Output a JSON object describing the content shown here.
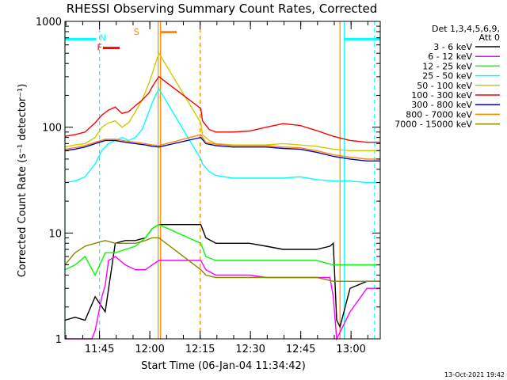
{
  "chart_data": {
    "type": "line",
    "title": "RHESSI Observing Summary Count Rates, Corrected",
    "xlabel": "Start Time (06-Jan-04 11:34:42)",
    "ylabel": "Corrected Count Rate (s⁻¹ detector⁻¹)",
    "x_unit": "minutes after 11:34:42",
    "x_range": [
      0,
      94
    ],
    "ylim": [
      1,
      1000
    ],
    "yscale": "log",
    "grid": false,
    "legend_position": "top-right-outside",
    "x_ticks": [
      {
        "label": "11:45",
        "x": 10.3
      },
      {
        "label": "12:00",
        "x": 25.3
      },
      {
        "label": "12:15",
        "x": 40.3
      },
      {
        "label": "12:30",
        "x": 55.3
      },
      {
        "label": "12:45",
        "x": 70.3
      },
      {
        "label": "13:00",
        "x": 85.3
      }
    ],
    "y_ticks": [
      {
        "label": "1",
        "y": 1
      },
      {
        "label": "10",
        "y": 10
      },
      {
        "label": "100",
        "y": 100
      },
      {
        "label": "1000",
        "y": 1000
      }
    ],
    "legend_header": [
      "Det 1,3,4,5,6,9,",
      "Att 0"
    ],
    "series": [
      {
        "name": "3 - 6 keV",
        "color": "#000000",
        "x": [
          0,
          3,
          6,
          9,
          12,
          15,
          18,
          21,
          24,
          26,
          28,
          40.5,
          42,
          45,
          50,
          55,
          60,
          65,
          70,
          75,
          79,
          80,
          81,
          82,
          85,
          90,
          94
        ],
        "y": [
          1.5,
          1.6,
          1.5,
          2.5,
          1.8,
          8,
          8.5,
          8.5,
          9,
          11,
          12,
          12,
          9,
          8,
          8,
          8,
          7.5,
          7,
          7,
          7,
          7.5,
          8,
          1.5,
          1.3,
          3,
          3.5,
          3.5
        ]
      },
      {
        "name": "6 - 12 keV",
        "color": "#ff00ff",
        "x": [
          0,
          8,
          9,
          11,
          12,
          13,
          15,
          18,
          21,
          24,
          26,
          28,
          40.5,
          42,
          45,
          50,
          55,
          60,
          65,
          70,
          75,
          79,
          80,
          81,
          85,
          90,
          94
        ],
        "y": [
          1,
          1,
          1.2,
          2.5,
          3.2,
          5.5,
          6,
          5,
          4.5,
          4.5,
          5,
          5.5,
          5.5,
          4.5,
          4,
          4,
          4,
          3.8,
          3.8,
          3.8,
          3.8,
          3.8,
          2.5,
          1,
          1.8,
          3,
          3
        ]
      },
      {
        "name": "12 - 25 keV",
        "color": "#00ff00",
        "x": [
          0,
          3,
          6,
          9,
          12,
          15,
          18,
          21,
          24,
          26,
          28,
          40.5,
          42,
          45,
          50,
          55,
          60,
          65,
          70,
          75,
          80,
          85,
          90,
          94
        ],
        "y": [
          4.5,
          5,
          6,
          4,
          6.5,
          6.5,
          7,
          7.5,
          9,
          11,
          12,
          8,
          6,
          5.5,
          5.5,
          5.5,
          5.5,
          5.5,
          5.5,
          5.5,
          5,
          5,
          5,
          5
        ]
      },
      {
        "name": "25 - 50 keV",
        "color": "#00ffff",
        "x": [
          0,
          3,
          6,
          9,
          11,
          13,
          15,
          17,
          19,
          21,
          23,
          25,
          26,
          27,
          28,
          40.5,
          41,
          43,
          45,
          50,
          55,
          60,
          65,
          70,
          75,
          80,
          85,
          90,
          94
        ],
        "y": [
          30,
          31,
          34,
          45,
          60,
          70,
          75,
          80,
          75,
          80,
          95,
          140,
          170,
          200,
          230,
          50,
          45,
          38,
          35,
          33,
          33,
          33,
          33,
          34,
          32,
          31,
          31,
          30,
          30
        ]
      },
      {
        "name": "50 - 100 keV",
        "color": "#cccc00",
        "x": [
          0,
          3,
          6,
          9,
          11,
          13,
          15,
          17,
          19,
          21,
          23,
          25,
          26,
          27,
          28,
          40.5,
          41,
          43,
          45,
          50,
          55,
          60,
          65,
          70,
          75,
          80,
          85,
          90,
          94
        ],
        "y": [
          65,
          68,
          70,
          80,
          100,
          110,
          115,
          100,
          110,
          140,
          180,
          260,
          320,
          400,
          500,
          110,
          85,
          75,
          70,
          68,
          68,
          68,
          70,
          68,
          66,
          62,
          60,
          60,
          60
        ]
      },
      {
        "name": "100 - 300 keV",
        "color": "#ff0000",
        "x": [
          0,
          3,
          6,
          9,
          11,
          13,
          15,
          17,
          19,
          21,
          23,
          25,
          26,
          27,
          28,
          40.5,
          41,
          43,
          45,
          50,
          55,
          60,
          65,
          70,
          75,
          80,
          85,
          90,
          94
        ],
        "y": [
          82,
          85,
          90,
          110,
          130,
          145,
          155,
          135,
          140,
          160,
          180,
          210,
          240,
          270,
          300,
          150,
          115,
          95,
          90,
          90,
          92,
          100,
          108,
          104,
          93,
          82,
          75,
          72,
          72
        ]
      },
      {
        "name": "300 - 800 keV",
        "color": "#0000cc",
        "x": [
          0,
          3,
          6,
          9,
          12,
          15,
          18,
          21,
          24,
          26,
          28,
          40.5,
          42,
          45,
          50,
          55,
          60,
          65,
          70,
          75,
          80,
          85,
          90,
          94
        ],
        "y": [
          60,
          62,
          65,
          70,
          75,
          75,
          72,
          70,
          68,
          66,
          65,
          80,
          70,
          67,
          65,
          65,
          65,
          63,
          62,
          58,
          53,
          50,
          48,
          48
        ]
      },
      {
        "name": "800 - 7000 keV",
        "color": "#ff8800",
        "x": [
          0,
          3,
          6,
          9,
          12,
          15,
          18,
          21,
          24,
          26,
          28,
          40.5,
          42,
          45,
          50,
          55,
          60,
          65,
          70,
          75,
          80,
          85,
          90,
          94
        ],
        "y": [
          62,
          64,
          67,
          72,
          77,
          77,
          74,
          72,
          70,
          68,
          67,
          85,
          72,
          69,
          67,
          67,
          67,
          65,
          64,
          60,
          55,
          52,
          50,
          50
        ]
      },
      {
        "name": "7000 - 15000 keV",
        "color": "#888800",
        "x": [
          0,
          3,
          6,
          9,
          12,
          15,
          18,
          21,
          24,
          26,
          28,
          40.5,
          42,
          45,
          50,
          55,
          60,
          65,
          70,
          75,
          80,
          85,
          90,
          94
        ],
        "y": [
          5,
          6.5,
          7.5,
          8,
          8.5,
          8,
          8,
          8,
          8.5,
          9,
          9,
          4.5,
          4,
          3.8,
          3.8,
          3.8,
          3.8,
          3.8,
          3.8,
          3.8,
          3.5,
          3.5,
          3.5,
          3.5
        ]
      }
    ],
    "annotations": [
      {
        "label": "N",
        "color": "#00ffff",
        "x": 11.3,
        "y": 700
      },
      {
        "label": "F",
        "color": "#ff0000",
        "x": 10.3,
        "y": 570
      },
      {
        "label": "S",
        "color": "#ff8800",
        "x": 21.3,
        "y": 800
      }
    ],
    "flag_bars": [
      {
        "flag": "N",
        "color": "#00ffff",
        "x": [
          0,
          9.3
        ],
        "y": 680
      },
      {
        "flag": "N",
        "color": "#00ffff",
        "x": [
          83.3,
          94
        ],
        "y": 680
      },
      {
        "flag": "F",
        "color": "#ff0000",
        "x": [
          11.3,
          16.3
        ],
        "y": 560
      },
      {
        "flag": "S",
        "color": "#ff8800",
        "x": [
          28.5,
          33.3
        ],
        "y": 790
      }
    ],
    "vertical_lines": [
      {
        "x": 0,
        "color": "#00ffff",
        "style": "solid"
      },
      {
        "x": 10.3,
        "color": "#00ffff",
        "style": "dashed"
      },
      {
        "x": 83.3,
        "color": "#00ffff",
        "style": "solid"
      },
      {
        "x": 92.3,
        "color": "#00ffff",
        "style": "dashed"
      },
      {
        "x": 27.8,
        "color": "#ff8800",
        "style": "solid"
      },
      {
        "x": 28.5,
        "color": "#ff8800",
        "style": "solid"
      },
      {
        "x": 40.3,
        "color": "#ff8800",
        "style": "dashed"
      },
      {
        "x": 82.0,
        "color": "#ff8800",
        "style": "solid"
      }
    ]
  },
  "footer": {
    "timestamp": "13-Oct-2021 19:42"
  }
}
